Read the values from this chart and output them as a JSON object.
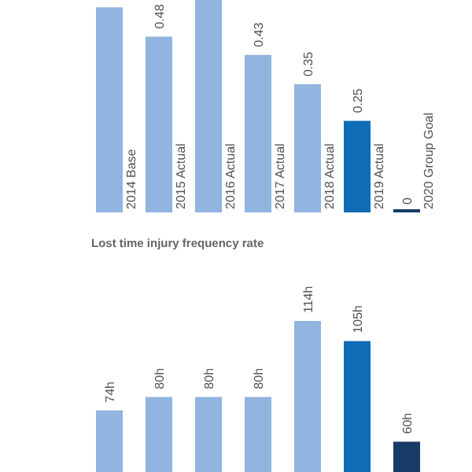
{
  "chart_data": [
    {
      "type": "bar",
      "categories": [
        "2014 Base",
        "2015 Actual",
        "2016 Actual",
        "2017 Actual",
        "2018 Actual",
        "2019 Actual",
        "2020 Group Goal"
      ],
      "values": [
        0.56,
        0.48,
        0.58,
        0.43,
        0.35,
        0.25,
        0
      ],
      "value_labels": [
        null,
        "0.48",
        null,
        "0.43",
        "0.35",
        "0.25",
        "0"
      ],
      "colors": [
        "#92b4e0",
        "#92b4e0",
        "#92b4e0",
        "#92b4e0",
        "#92b4e0",
        "#0f6cb6",
        "#173a66"
      ],
      "ylim": [
        0,
        0.58
      ],
      "tick_labels": "x"
    },
    {
      "type": "bar",
      "title": "Lost time injury frequency rate",
      "categories": [
        null,
        null,
        null,
        null,
        null,
        null,
        null
      ],
      "values": [
        74,
        80,
        80,
        80,
        114,
        105,
        60
      ],
      "value_labels": [
        "74h",
        "80h",
        "80h",
        "80h",
        "114h",
        "105h",
        "60h"
      ],
      "colors": [
        "#92b4e0",
        "#92b4e0",
        "#92b4e0",
        "#92b4e0",
        "#92b4e0",
        "#0f6cb6",
        "#173a66"
      ],
      "tick_labels": "x"
    }
  ]
}
